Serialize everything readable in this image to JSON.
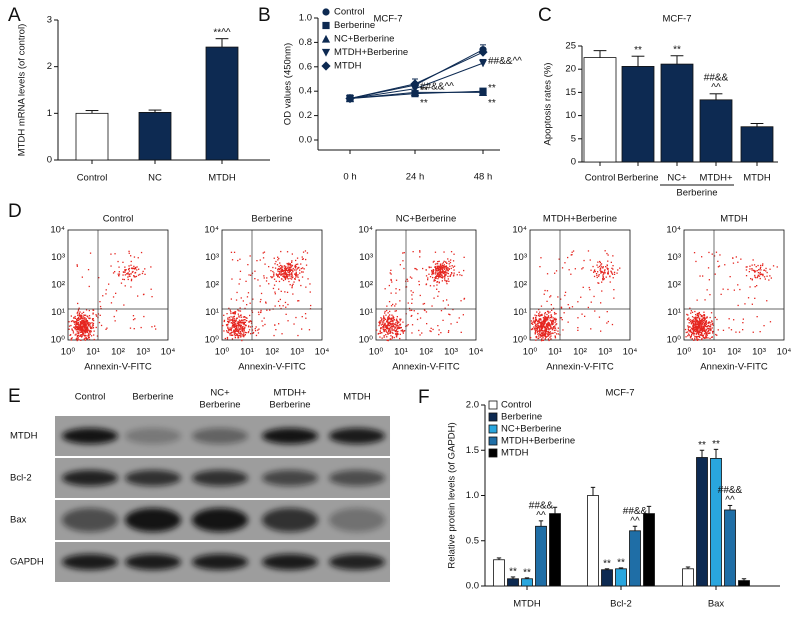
{
  "chart_data": [
    {
      "type": "bar",
      "panel_label": "A",
      "y_label": "MTDH mRNA levels (of control)",
      "categories": [
        "Control",
        "NC",
        "MTDH"
      ],
      "values": [
        1.0,
        1.02,
        2.42
      ],
      "errors": [
        0.06,
        0.05,
        0.18
      ],
      "colors": [
        "#ffffff",
        "#0d2a52",
        "#0d2a52"
      ],
      "annotations": [
        null,
        null,
        [
          "**^^"
        ]
      ],
      "ylim": [
        0,
        3
      ],
      "yticks": [
        0,
        1,
        2,
        3
      ]
    },
    {
      "type": "line",
      "panel_label": "B",
      "title": "MCF-7",
      "y_label": "OD values (450nm)",
      "categories": [
        "0 h",
        "24 h",
        "48 h"
      ],
      "series": [
        {
          "name": "Control",
          "color": "#0d2a52",
          "marker": "circle",
          "values": [
            0.34,
            0.45,
            0.74
          ],
          "errors": [
            0.03,
            0.05,
            0.04
          ],
          "annotations": [
            null,
            null,
            null
          ]
        },
        {
          "name": "Berberine",
          "color": "#0d2a52",
          "marker": "square",
          "values": [
            0.34,
            0.38,
            0.4
          ],
          "errors": [
            0.02,
            0.01,
            0.01
          ],
          "annotations": [
            null,
            [
              "**"
            ],
            [
              "**"
            ]
          ]
        },
        {
          "name": "NC+Berberine",
          "color": "#0d2a52",
          "marker": "triangle-up",
          "values": [
            0.34,
            0.39,
            0.39
          ],
          "errors": [
            0.02,
            0.01,
            0.01
          ],
          "annotations": [
            null,
            [
              "**"
            ],
            [
              "**"
            ]
          ]
        },
        {
          "name": "MTDH+Berberine",
          "color": "#0d2a52",
          "marker": "triangle-down",
          "values": [
            0.34,
            0.42,
            0.63
          ],
          "errors": [
            0.02,
            0.03,
            0.03
          ],
          "annotations": [
            null,
            [
              "##&&^^"
            ],
            [
              "##&&^^"
            ]
          ]
        },
        {
          "name": "MTDH",
          "color": "#0d2a52",
          "marker": "diamond",
          "values": [
            0.34,
            0.46,
            0.72
          ],
          "errors": [
            0.02,
            0.04,
            0.03
          ],
          "annotations": [
            null,
            null,
            null
          ]
        }
      ],
      "ylim": [
        0,
        1.0
      ],
      "yticks": [
        {
          "value": 0,
          "label": "0.0"
        },
        0.2,
        0.4,
        0.6,
        0.8,
        {
          "value": 1.0,
          "label": "1.0"
        }
      ],
      "legend": "upper-left"
    },
    {
      "type": "bar",
      "panel_label": "C",
      "title": "MCF-7",
      "y_label": "Apoptosis rates (%)",
      "categories": [
        "Control",
        "Berberine",
        "NC+",
        "MTDH+",
        "MTDH"
      ],
      "category_group_label": "Berberine",
      "values": [
        22.5,
        20.6,
        21.1,
        13.4,
        7.6
      ],
      "errors": [
        1.5,
        2.2,
        1.8,
        1.3,
        0.7
      ],
      "colors": [
        "#ffffff",
        "#0d2a52",
        "#0d2a52",
        "#0d2a52",
        "#0d2a52"
      ],
      "annotations": [
        null,
        [
          "**"
        ],
        [
          "**"
        ],
        [
          "##&&",
          "^^"
        ],
        null
      ],
      "ylim": [
        0,
        25
      ],
      "yticks": [
        0,
        5,
        10,
        15,
        20,
        25
      ]
    },
    {
      "type": "grouped-bar",
      "panel_label": "F",
      "title": "MCF-7",
      "y_label": "Relative protein levels (of GAPDH)",
      "categories": [
        "MTDH",
        "Bcl-2",
        "Bax"
      ],
      "series": [
        {
          "name": "Control",
          "color": "#ffffff",
          "values": [
            0.29,
            1.0,
            0.19
          ],
          "errors": [
            0.02,
            0.09,
            0.02
          ]
        },
        {
          "name": "Berberine",
          "color": "#0d2a52",
          "values": [
            0.08,
            0.18,
            1.42
          ],
          "errors": [
            0.02,
            0.01,
            0.08
          ],
          "annotations": [
            [
              "**"
            ],
            [
              "**"
            ],
            [
              "**"
            ]
          ]
        },
        {
          "name": "NC+Berberine",
          "color": "#29a6de",
          "values": [
            0.08,
            0.19,
            1.41
          ],
          "errors": [
            0.01,
            0.01,
            0.1
          ],
          "annotations": [
            [
              "**"
            ],
            [
              "**"
            ],
            [
              "**"
            ]
          ]
        },
        {
          "name": "MTDH+Berberine",
          "color": "#1f6ea6",
          "values": [
            0.66,
            0.61,
            0.84
          ],
          "errors": [
            0.06,
            0.05,
            0.05
          ],
          "annotations": [
            [
              "##&&",
              "^^"
            ],
            [
              "##&&",
              "^^"
            ],
            [
              "##&&",
              "^^"
            ]
          ]
        },
        {
          "name": "MTDH",
          "color": "#000000",
          "values": [
            0.8,
            0.8,
            0.06
          ],
          "errors": [
            0.07,
            0.08,
            0.02
          ]
        }
      ],
      "ylim": [
        0,
        2.0
      ],
      "yticks": [
        {
          "value": 0,
          "label": "0.0"
        },
        0.5,
        {
          "value": 1.0,
          "label": "1.0"
        },
        1.5,
        {
          "value": 2.0,
          "label": "2.0"
        }
      ],
      "legend": "upper-left"
    }
  ],
  "flow_cytometry": {
    "panel_label": "D",
    "plots": [
      "Control",
      "Berberine",
      "NC+Berberine",
      "MTDH+Berberine",
      "MTDH"
    ],
    "x_label": "Annexin-V-FITC",
    "axis_ticks": [
      "10⁰",
      "10¹",
      "10²",
      "10³",
      "10⁴"
    ]
  },
  "western_blot": {
    "panel_label": "E",
    "columns": [
      [
        "Control"
      ],
      [
        "Berberine"
      ],
      [
        "NC+",
        "Berberine"
      ],
      [
        "MTDH+",
        "Berberine"
      ],
      [
        "MTDH"
      ]
    ],
    "rows": [
      "MTDH",
      "Bcl-2",
      "Bax",
      "GAPDH"
    ]
  }
}
